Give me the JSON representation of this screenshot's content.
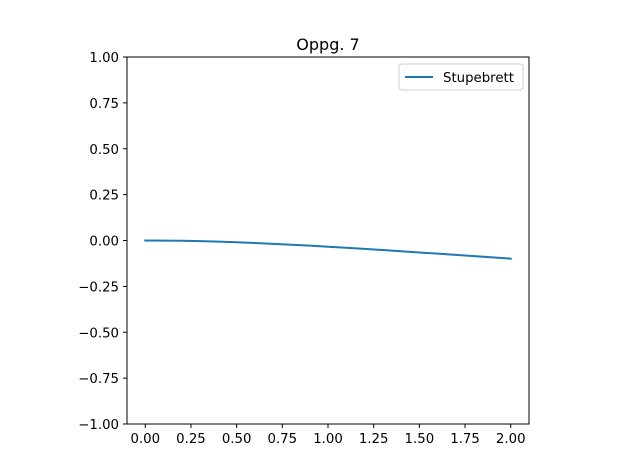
{
  "chart_data": {
    "type": "line",
    "title": "Oppg. 7",
    "xlabel": "",
    "ylabel": "",
    "xlim": [
      -0.1,
      2.1
    ],
    "ylim": [
      -1.0,
      1.0
    ],
    "xticks": [
      0.0,
      0.25,
      0.5,
      0.75,
      1.0,
      1.25,
      1.5,
      1.75,
      2.0
    ],
    "xtick_labels": [
      "0.00",
      "0.25",
      "0.50",
      "0.75",
      "1.00",
      "1.25",
      "1.50",
      "1.75",
      "2.00"
    ],
    "yticks": [
      -1.0,
      -0.75,
      -0.5,
      -0.25,
      0.0,
      0.25,
      0.5,
      0.75,
      1.0
    ],
    "ytick_labels": [
      "−1.00",
      "−0.75",
      "−0.50",
      "−0.25",
      "0.00",
      "0.25",
      "0.50",
      "0.75",
      "1.00"
    ],
    "grid": false,
    "legend_position": "top-right",
    "series": [
      {
        "name": "Stupebrett",
        "color": "#1f77b4",
        "x": [
          0.0,
          0.1,
          0.2,
          0.3,
          0.4,
          0.5,
          0.6,
          0.7,
          0.8,
          0.9,
          1.0,
          1.1,
          1.2,
          1.3,
          1.4,
          1.5,
          1.6,
          1.7,
          1.8,
          1.9,
          2.0
        ],
        "y": [
          0.0,
          -0.0004,
          -0.0017,
          -0.0037,
          -0.0064,
          -0.0098,
          -0.0137,
          -0.0181,
          -0.023,
          -0.0282,
          -0.0338,
          -0.0397,
          -0.0458,
          -0.0521,
          -0.0585,
          -0.0651,
          -0.0717,
          -0.0785,
          -0.0853,
          -0.0921,
          -0.099
        ]
      }
    ]
  }
}
